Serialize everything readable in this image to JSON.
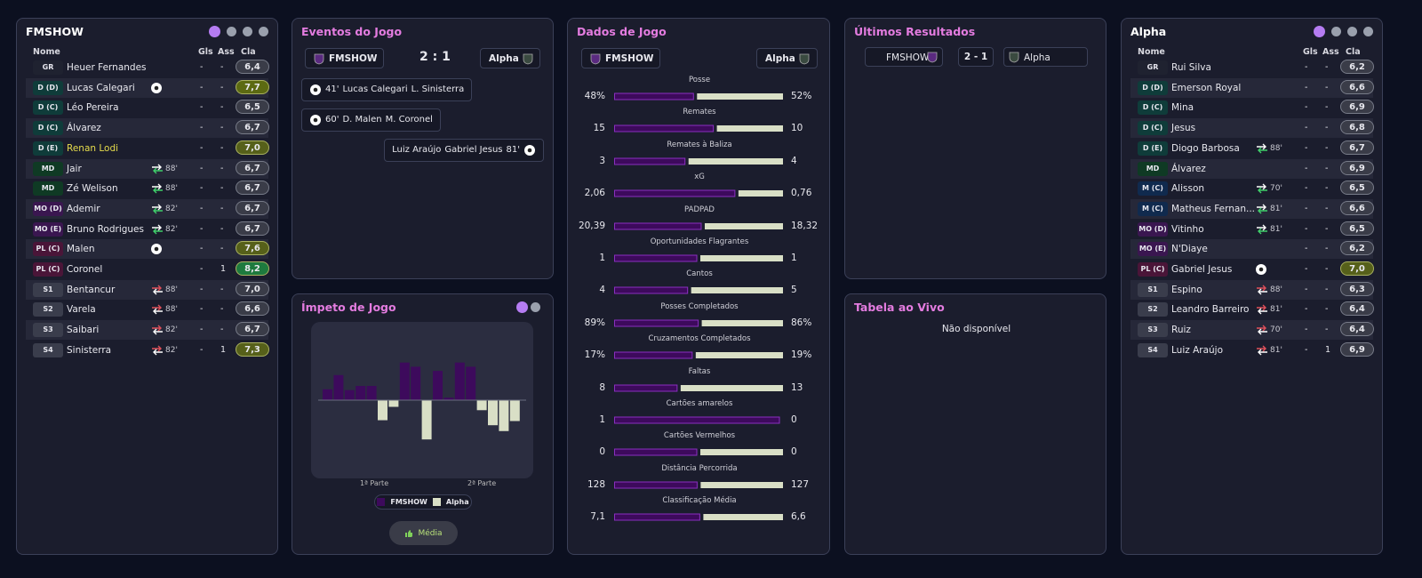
{
  "home_panel": {
    "title": "FMSHOW",
    "headers": [
      "Nome",
      "Gls",
      "Ass",
      "Cla"
    ],
    "players": [
      {
        "pos": "GR",
        "name": "Heuer Fernandes",
        "gls": "-",
        "ass": "-",
        "rating": "6,4"
      },
      {
        "pos": "D (D)",
        "name": "Lucas Calegari",
        "icon": "goal",
        "gls": "-",
        "ass": "-",
        "rating": "7,7",
        "rating_color": "#5c6a12"
      },
      {
        "pos": "D (C)",
        "name": "Léo Pereira",
        "gls": "-",
        "ass": "-",
        "rating": "6,5"
      },
      {
        "pos": "D (C)",
        "name": "Álvarez",
        "gls": "-",
        "ass": "-",
        "rating": "6,7"
      },
      {
        "pos": "D (E)",
        "name": "Renan Lodi",
        "name_color": "#e6dc4c",
        "gls": "-",
        "ass": "-",
        "rating": "7,0",
        "rating_color": "#56601a"
      },
      {
        "pos": "MD",
        "name": "Jair",
        "icon": "sub_out",
        "time": "88'",
        "gls": "-",
        "ass": "-",
        "rating": "6,7"
      },
      {
        "pos": "MD",
        "name": "Zé Welison",
        "icon": "sub_out",
        "time": "88'",
        "gls": "-",
        "ass": "-",
        "rating": "6,7"
      },
      {
        "pos": "MO (D)",
        "name": "Ademir",
        "icon": "sub_out",
        "time": "82'",
        "gls": "-",
        "ass": "-",
        "rating": "6,7"
      },
      {
        "pos": "MO (E)",
        "name": "Bruno Rodrigues",
        "icon": "sub_out",
        "time": "82'",
        "gls": "-",
        "ass": "-",
        "rating": "6,7"
      },
      {
        "pos": "PL (C)",
        "name": "Malen",
        "icon": "goal",
        "gls": "-",
        "ass": "-",
        "rating": "7,6",
        "rating_color": "#56601a"
      },
      {
        "pos": "PL (C)",
        "name": "Coronel",
        "gls": "-",
        "ass": 1,
        "rating": "8,2",
        "rating_color": "#1e7a3e"
      },
      {
        "pos": "S1",
        "name": "Bentancur",
        "icon": "sub_in",
        "time": "88'",
        "gls": "-",
        "ass": "-",
        "rating": "7,0"
      },
      {
        "pos": "S2",
        "name": "Varela",
        "icon": "sub_in",
        "time": "88'",
        "gls": "-",
        "ass": "-",
        "rating": "6,6"
      },
      {
        "pos": "S3",
        "name": "Saibari",
        "icon": "sub_in",
        "time": "82'",
        "gls": "-",
        "ass": "-",
        "rating": "6,7"
      },
      {
        "pos": "S4",
        "name": "Sinisterra",
        "icon": "sub_in",
        "time": "82'",
        "gls": "-",
        "ass": 1,
        "rating": "7,3",
        "rating_color": "#56601a"
      }
    ]
  },
  "away_panel": {
    "title": "Alpha",
    "headers": [
      "Nome",
      "Gls",
      "Ass",
      "Cla"
    ],
    "players": [
      {
        "pos": "GR",
        "name": "Rui Silva",
        "gls": "-",
        "ass": "-",
        "rating": "6,2"
      },
      {
        "pos": "D (D)",
        "name": "Emerson Royal",
        "gls": "-",
        "ass": "-",
        "rating": "6,6"
      },
      {
        "pos": "D (C)",
        "name": "Mina",
        "gls": "-",
        "ass": "-",
        "rating": "6,9"
      },
      {
        "pos": "D (C)",
        "name": "Jesus",
        "gls": "-",
        "ass": "-",
        "rating": "6,8"
      },
      {
        "pos": "D (E)",
        "name": "Diogo Barbosa",
        "icon": "sub_out",
        "time": "88'",
        "gls": "-",
        "ass": "-",
        "rating": "6,7"
      },
      {
        "pos": "MD",
        "name": "Álvarez",
        "gls": "-",
        "ass": "-",
        "rating": "6,9"
      },
      {
        "pos": "M (C)",
        "name": "Alisson",
        "icon": "sub_out",
        "time": "70'",
        "gls": "-",
        "ass": "-",
        "rating": "6,5"
      },
      {
        "pos": "M (C)",
        "name": "Matheus Fernan...",
        "icon": "sub_out",
        "time": "81'",
        "gls": "-",
        "ass": "-",
        "rating": "6,6"
      },
      {
        "pos": "MO (D)",
        "name": "Vitinho",
        "icon": "sub_out",
        "time": "81'",
        "gls": "-",
        "ass": "-",
        "rating": "6,5"
      },
      {
        "pos": "MO (E)",
        "name": "N'Diaye",
        "gls": "-",
        "ass": "-",
        "rating": "6,2"
      },
      {
        "pos": "PL (C)",
        "name": "Gabriel Jesus",
        "icon": "goal",
        "gls": "-",
        "ass": "-",
        "rating": "7,0",
        "rating_color": "#56601a"
      },
      {
        "pos": "S1",
        "name": "Espino",
        "icon": "sub_in",
        "time": "88'",
        "gls": "-",
        "ass": "-",
        "rating": "6,3"
      },
      {
        "pos": "S2",
        "name": "Leandro Barreiro",
        "icon": "sub_in",
        "time": "81'",
        "gls": "-",
        "ass": "-",
        "rating": "6,4"
      },
      {
        "pos": "S3",
        "name": "Ruiz",
        "icon": "sub_in",
        "time": "70'",
        "gls": "-",
        "ass": "-",
        "rating": "6,4"
      },
      {
        "pos": "S4",
        "name": "Luiz Araújo",
        "icon": "sub_in",
        "time": "81'",
        "gls": "-",
        "ass": 1,
        "rating": "6,9"
      }
    ]
  },
  "events": {
    "title": "Eventos do Jogo",
    "home": "FMSHOW",
    "score": "2 : 1",
    "away": "Alpha",
    "items": [
      {
        "side": "home",
        "minute": "41'",
        "scorer": "Lucas Calegari",
        "assist": "L. Sinisterra"
      },
      {
        "side": "home",
        "minute": "60'",
        "scorer": "D. Malen",
        "assist": "M. Coronel"
      },
      {
        "side": "away",
        "minute": "81'",
        "scorer": "Gabriel Jesus",
        "assist": "Luiz Araújo"
      }
    ]
  },
  "momentum": {
    "title": "Ímpeto de Jogo",
    "ylim": [
      -50,
      50
    ],
    "values": [
      13,
      30,
      12,
      17,
      17,
      -24,
      -8,
      45,
      40,
      -47,
      35,
      3,
      45,
      40,
      -12,
      -30,
      -37,
      -25
    ],
    "home_color": "#3d0a5c",
    "away_color": "#d9dfc6",
    "half_labels": [
      "1ª Parte",
      "2ª Parte"
    ],
    "legend": [
      "FMSHOW",
      "Alpha"
    ],
    "button": "Média"
  },
  "stats": {
    "title": "Dados de Jogo",
    "home": "FMSHOW",
    "away": "Alpha",
    "home_color": "#3d0a5c",
    "away_color": "#d9dfc6",
    "rows": [
      {
        "label": "Posse",
        "home": 48,
        "away": 52,
        "home_label": "48%",
        "away_label": "52%"
      },
      {
        "label": "Remates",
        "home": 15,
        "away": 10
      },
      {
        "label": "Remates à Baliza",
        "home": 3,
        "away": 4
      },
      {
        "label": "xG",
        "home": 2.06,
        "away": 0.76,
        "home_label": "2,06",
        "away_label": "0,76"
      },
      {
        "label": "PADPAD",
        "home": 20.39,
        "away": 18.32,
        "home_label": "20,39",
        "away_label": "18,32"
      },
      {
        "label": "Oportunidades Flagrantes",
        "home": 1,
        "away": 1
      },
      {
        "label": "Cantos",
        "home": 4,
        "away": 5
      },
      {
        "label": "Posses Completados",
        "home": 89,
        "away": 86,
        "home_label": "89%",
        "away_label": "86%"
      },
      {
        "label": "Cruzamentos Completados",
        "home": 17,
        "away": 19,
        "home_label": "17%",
        "away_label": "19%"
      },
      {
        "label": "Faltas",
        "home": 8,
        "away": 13
      },
      {
        "label": "Cartões amarelos",
        "home": 1,
        "away": 0
      },
      {
        "label": "Cartões Vermelhos",
        "home": 0,
        "away": 0
      },
      {
        "label": "Distância Percorrida",
        "home": 128,
        "away": 127
      },
      {
        "label": "Classificação Média",
        "home": 7.1,
        "away": 6.6,
        "home_label": "7,1",
        "away_label": "6,6"
      }
    ]
  },
  "results": {
    "title": "Últimos Resultados",
    "home": "FMSHOW",
    "score": "2 - 1",
    "away": "Alpha"
  },
  "live_table": {
    "title": "Tabela ao Vivo",
    "message": "Não disponível"
  }
}
